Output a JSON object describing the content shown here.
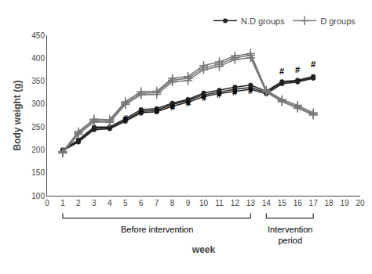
{
  "chart_data": {
    "type": "line",
    "ylabel": "Body weight (g)",
    "xlabel": "week",
    "x": [
      1,
      2,
      3,
      4,
      5,
      6,
      7,
      8,
      9,
      10,
      11,
      12,
      13,
      14,
      15,
      16,
      17
    ],
    "series": [
      {
        "name": "N.D groups",
        "color": "#222222",
        "marker": "circle",
        "values": [
          200,
          222,
          250,
          250,
          268,
          288,
          290,
          302,
          310,
          324,
          330,
          337,
          341,
          328,
          349,
          352,
          360
        ]
      },
      {
        "name": "N.D groups",
        "color": "#222222",
        "marker": "circle",
        "values": [
          200,
          219,
          247,
          248,
          265,
          284,
          286,
          299,
          308,
          320,
          326,
          332,
          336,
          325,
          347,
          350,
          358
        ]
      },
      {
        "name": "N.D groups",
        "color": "#222222",
        "marker": "circle",
        "values": [
          198,
          217,
          244,
          246,
          262,
          281,
          283,
          295,
          304,
          316,
          323,
          328,
          332,
          322,
          344,
          348,
          356
        ]
      },
      {
        "name": "D groups",
        "color": "#777777",
        "marker": "plus",
        "values": [
          196,
          240,
          267,
          266,
          305,
          327,
          328,
          356,
          360,
          384,
          392,
          405,
          410,
          330,
          310,
          297,
          281
        ]
      },
      {
        "name": "D groups",
        "color": "#777777",
        "marker": "plus",
        "values": [
          195,
          237,
          264,
          263,
          302,
          323,
          325,
          352,
          356,
          379,
          387,
          401,
          406,
          328,
          307,
          294,
          278
        ]
      },
      {
        "name": "D groups",
        "color": "#777777",
        "marker": "plus",
        "values": [
          193,
          234,
          261,
          260,
          299,
          320,
          321,
          348,
          351,
          375,
          382,
          397,
          401,
          326,
          305,
          291,
          276
        ]
      }
    ],
    "xlim": [
      0,
      20
    ],
    "xticks": [
      0,
      1,
      2,
      3,
      4,
      5,
      6,
      7,
      8,
      9,
      10,
      11,
      12,
      13,
      14,
      15,
      16,
      17,
      18,
      19,
      20
    ],
    "ylim": [
      100,
      450
    ],
    "yticks": [
      100,
      150,
      200,
      250,
      300,
      350,
      400,
      450
    ],
    "grid": false,
    "legend": "upper right",
    "annotations": [
      {
        "text": "#",
        "x": 5,
        "y": 255
      },
      {
        "text": "#",
        "x": 6,
        "y": 268
      },
      {
        "text": "#",
        "x": 7,
        "y": 270
      },
      {
        "text": "#",
        "x": 8,
        "y": 280
      },
      {
        "text": "#",
        "x": 9,
        "y": 287
      },
      {
        "text": "#",
        "x": 10,
        "y": 299
      },
      {
        "text": "#",
        "x": 11,
        "y": 306
      },
      {
        "text": "#",
        "x": 12,
        "y": 311
      },
      {
        "text": "#",
        "x": 13,
        "y": 315
      },
      {
        "text": "#",
        "x": 15,
        "y": 358
      },
      {
        "text": "#",
        "x": 16,
        "y": 362
      },
      {
        "text": "#",
        "x": 17,
        "y": 374
      },
      {
        "text": "Before intervention",
        "x": [
          1,
          13
        ]
      },
      {
        "text": "Intervention\nperiod",
        "x": [
          14,
          17
        ]
      }
    ]
  }
}
